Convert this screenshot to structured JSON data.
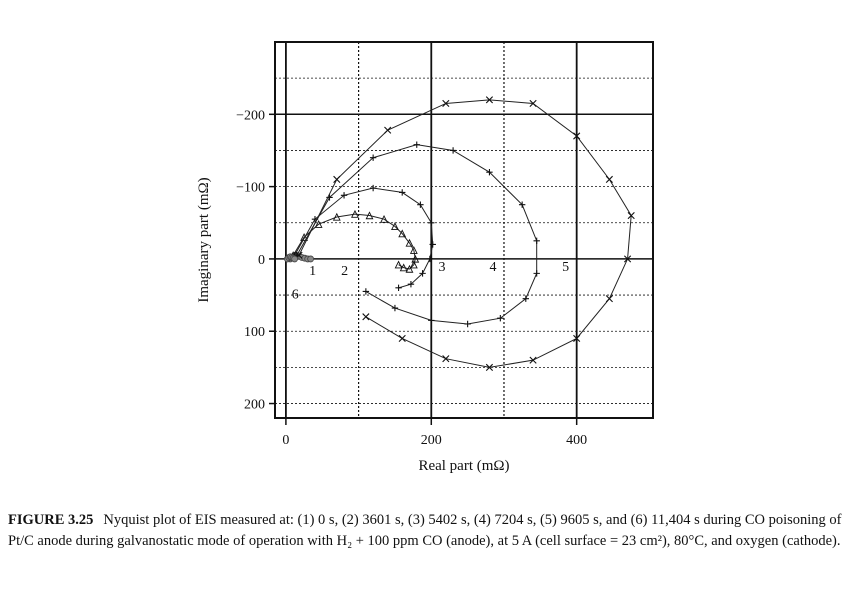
{
  "chart_data": {
    "type": "scatter",
    "xlabel": "Real part (mΩ)",
    "ylabel": "Imaginary part (mΩ)",
    "xlim": [
      -15,
      505
    ],
    "ylim": [
      -300,
      220
    ],
    "x_ticks": [
      0,
      200,
      400
    ],
    "x_tick_labels": [
      "0",
      "200",
      "400"
    ],
    "y_ticks": [
      -200,
      -100,
      0,
      100,
      200
    ],
    "y_tick_labels": [
      "−200",
      "−100",
      "0",
      "100",
      "200"
    ],
    "grid": true,
    "series": [
      {
        "name": "1",
        "marker": "circle",
        "label_at": [
          32,
          15
        ],
        "x": [
          6,
          10,
          14,
          18,
          22,
          26,
          30,
          34
        ],
        "y": [
          0,
          -3,
          -5,
          -4,
          -2,
          -1,
          0,
          0
        ]
      },
      {
        "name": "2",
        "marker": "triangle",
        "label_at": [
          76,
          15
        ],
        "x": [
          10,
          25,
          45,
          70,
          95,
          115,
          135,
          150,
          160,
          170,
          176,
          178,
          176,
          170,
          162,
          155
        ],
        "y": [
          -5,
          -30,
          -48,
          -58,
          -62,
          -60,
          -55,
          -45,
          -35,
          -22,
          -12,
          0,
          8,
          14,
          12,
          8
        ]
      },
      {
        "name": "3",
        "marker": "plus",
        "label_at": [
          210,
          10
        ],
        "x": [
          12,
          40,
          80,
          120,
          160,
          185,
          200,
          202,
          198,
          188,
          172,
          155
        ],
        "y": [
          -5,
          -55,
          -88,
          -98,
          -92,
          -75,
          -50,
          -20,
          0,
          20,
          35,
          40
        ]
      },
      {
        "name": "4",
        "marker": "plus",
        "label_at": [
          280,
          10
        ],
        "x": [
          15,
          60,
          120,
          180,
          230,
          280,
          325,
          345,
          345,
          330,
          295,
          250,
          200,
          150,
          110
        ],
        "y": [
          -5,
          -85,
          -140,
          -158,
          -150,
          -120,
          -75,
          -25,
          20,
          55,
          82,
          90,
          85,
          68,
          45
        ]
      },
      {
        "name": "5",
        "marker": "cross",
        "label_at": [
          380,
          10
        ],
        "x": [
          18,
          70,
          140,
          220,
          280,
          340,
          400,
          445,
          475,
          470,
          445,
          400,
          340,
          280,
          220,
          160,
          110
        ],
        "y": [
          -5,
          -110,
          -178,
          -215,
          -220,
          -215,
          -170,
          -110,
          -60,
          0,
          55,
          110,
          140,
          150,
          138,
          110,
          80
        ]
      },
      {
        "name": "6",
        "marker": "circle",
        "label_at": [
          8,
          48
        ],
        "x": [
          2,
          4,
          6,
          8,
          10,
          12
        ],
        "y": [
          0,
          -2,
          -3,
          -2,
          -1,
          0
        ]
      }
    ]
  },
  "caption": {
    "label": "FIGURE 3.25",
    "text": "Nyquist plot of EIS measured at: (1) 0 s, (2) 3601 s, (3) 5402 s, (4) 7204 s, (5) 9605 s, and (6) 11,404 s during CO poisoning of Pt/C anode during galvanostatic mode of operation with H₂ + 100 ppm CO (anode), at 5 A (cell surface = 23 cm²), 80°C, and oxygen (cathode)."
  }
}
